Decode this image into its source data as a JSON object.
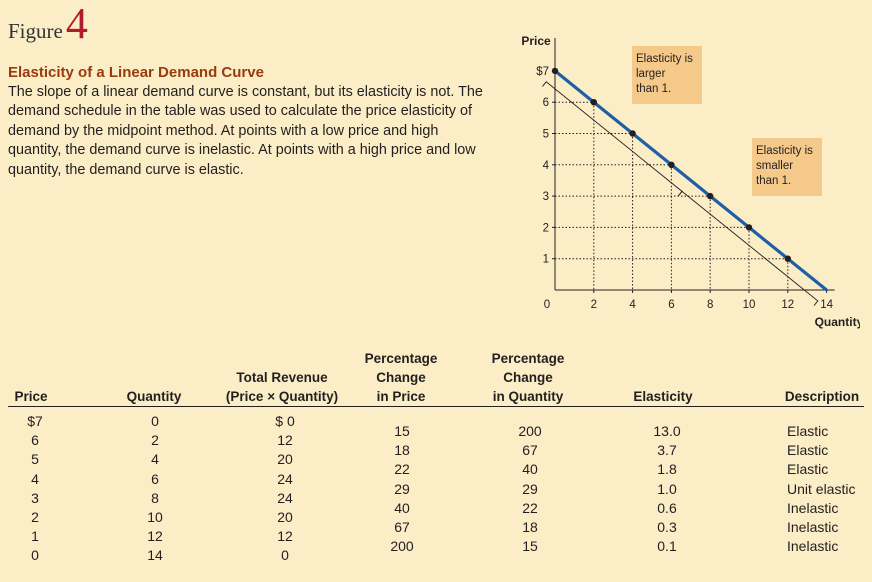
{
  "figure": {
    "word": "Figure",
    "number": "4"
  },
  "caption": {
    "title": "Elasticity of a Linear Demand Curve",
    "body": "The slope of a linear demand curve is constant, but its elasticity is not. The demand schedule in the table was used to calculate the price elasticity of demand by the midpoint method. At points with a low price and high quantity, the demand curve is inelastic. At points with a high price and low quantity, the demand curve is elastic."
  },
  "chart_data": {
    "type": "line",
    "title": "",
    "ylabel": "Price",
    "xlabel": "Quantity",
    "xlim": [
      0,
      14
    ],
    "ylim": [
      0,
      7.7
    ],
    "x_ticks": [
      "0",
      "2",
      "4",
      "6",
      "8",
      "10",
      "12",
      "14"
    ],
    "y_ticks": [
      "1",
      "2",
      "3",
      "4",
      "5",
      "6",
      "$7"
    ],
    "line_color": "#1f5fa8",
    "points": [
      {
        "x": 0,
        "y": 7
      },
      {
        "x": 2,
        "y": 6
      },
      {
        "x": 4,
        "y": 5
      },
      {
        "x": 6,
        "y": 4
      },
      {
        "x": 8,
        "y": 3
      },
      {
        "x": 10,
        "y": 2
      },
      {
        "x": 12,
        "y": 1
      },
      {
        "x": 14,
        "y": 0
      }
    ],
    "grid": "dotted guides from each point to both axes",
    "annotations": [
      {
        "text": "Elasticity is larger than 1.",
        "lines": [
          "Elasticity is",
          "larger",
          "than 1."
        ],
        "bracket_x": [
          0,
          7
        ]
      },
      {
        "text": "Elasticity is smaller than 1.",
        "lines": [
          "Elasticity is",
          "smaller",
          "than 1."
        ],
        "bracket_x": [
          7,
          14
        ]
      }
    ],
    "annotation_color": "#f4c98a"
  },
  "table": {
    "headers": {
      "price": [
        "Price"
      ],
      "quantity": [
        "Quantity"
      ],
      "revenue": [
        "Total Revenue",
        "(Price × Quantity)"
      ],
      "pct_price": [
        "Percentage",
        "Change",
        "in Price"
      ],
      "pct_qty": [
        "Percentage",
        "Change",
        "in Quantity"
      ],
      "elasticity": [
        "Elasticity"
      ],
      "description": [
        "Description"
      ]
    },
    "price": [
      "$7",
      "6",
      "5",
      "4",
      "3",
      "2",
      "1",
      "0"
    ],
    "quantity": [
      "0",
      "2",
      "4",
      "6",
      "8",
      "10",
      "12",
      "14"
    ],
    "revenue": [
      "$ 0",
      "12",
      "20",
      "24",
      "24",
      "20",
      "12",
      "0"
    ],
    "pct_price": [
      "15",
      "18",
      "22",
      "29",
      "40",
      "67",
      "200"
    ],
    "pct_qty": [
      "200",
      "67",
      "40",
      "29",
      "22",
      "18",
      "15"
    ],
    "elasticity": [
      "13.0",
      "3.7",
      "1.8",
      "1.0",
      "0.6",
      "0.3",
      "0.1"
    ],
    "description": [
      "Elastic",
      "Elastic",
      "Elastic",
      "Unit elastic",
      "Inelastic",
      "Inelastic",
      "Inelastic"
    ]
  }
}
